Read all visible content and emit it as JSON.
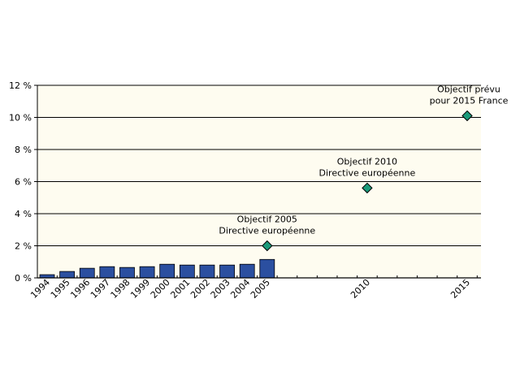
{
  "chart_data": {
    "type": "bar",
    "title": "",
    "xlabel": "",
    "ylabel": "",
    "ylim": [
      0,
      12
    ],
    "yticks": [
      "0 %",
      "2 %",
      "4 %",
      "6 %",
      "8 %",
      "10 %",
      "12 %"
    ],
    "ytick_values": [
      0,
      2,
      4,
      6,
      8,
      10,
      12
    ],
    "x_range": [
      1994,
      2015
    ],
    "grid": "horizontal",
    "series": [
      {
        "type": "bar",
        "color": "#2b4fa0",
        "categories": [
          "1994",
          "1995",
          "1996",
          "1997",
          "1998",
          "1999",
          "2000",
          "2001",
          "2002",
          "2003",
          "2004",
          "2005"
        ],
        "values": [
          0.2,
          0.4,
          0.6,
          0.7,
          0.65,
          0.7,
          0.85,
          0.8,
          0.8,
          0.8,
          0.85,
          1.15
        ]
      },
      {
        "type": "scatter",
        "marker": "diamond",
        "color": "#1a9a7a",
        "points": [
          {
            "x": 2005,
            "y": 2.0,
            "label_lines": [
              "Objectif 2005",
              "Directive européenne"
            ]
          },
          {
            "x": 2010,
            "y": 5.6,
            "label_lines": [
              "Objectif 2010",
              "Directive européenne"
            ]
          },
          {
            "x": 2015,
            "y": 10.1,
            "label_lines": [
              "Objectif prévu",
              "pour 2015 France"
            ]
          }
        ]
      }
    ],
    "xtick_labels": [
      "1994",
      "1995",
      "1996",
      "1997",
      "1998",
      "1999",
      "2000",
      "2001",
      "2002",
      "2003",
      "2004",
      "2005",
      "2010",
      "2015"
    ],
    "colors": {
      "plot_background": "#fefcf0",
      "bar": "#2b4fa0",
      "marker": "#1a9a7a",
      "grid": "#000000"
    }
  }
}
